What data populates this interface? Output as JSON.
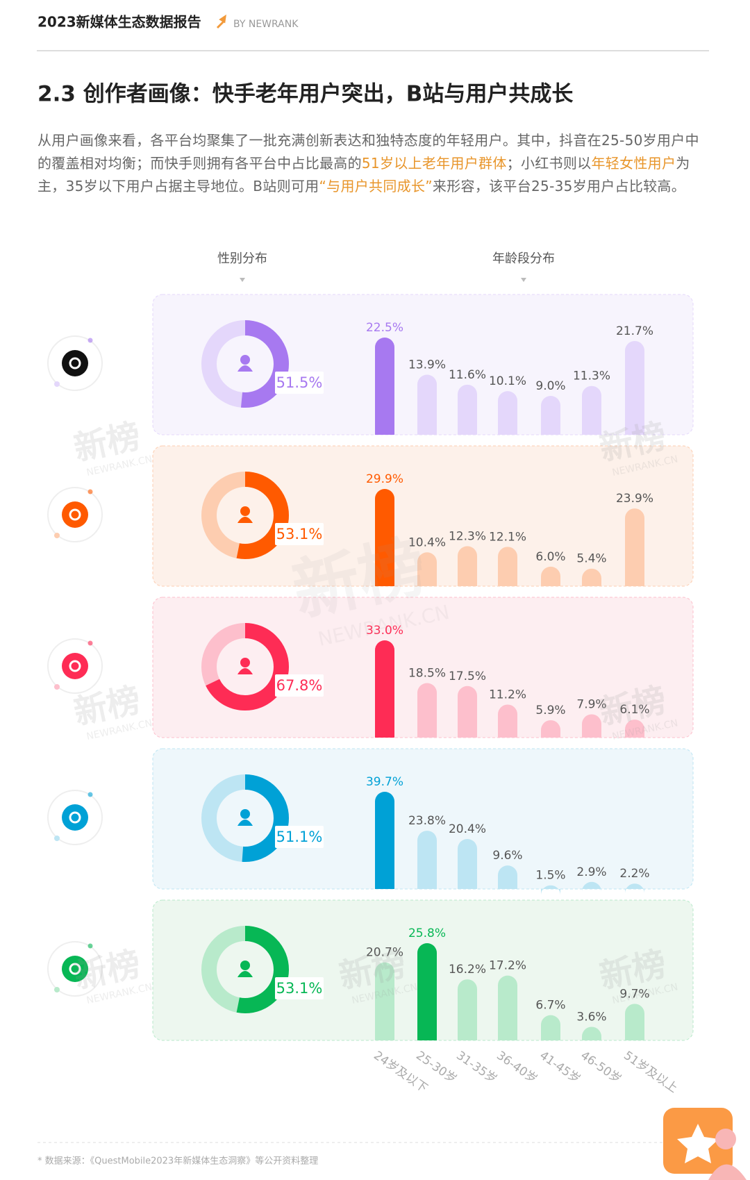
{
  "header": {
    "title": "2023新媒体生态数据报告",
    "by": "BY NEWRANK"
  },
  "section_title": "2.3 创作者画像：快手老年用户突出，B站与用户共成长",
  "paragraph": [
    {
      "text": "从用户画像来看，各平台均聚集了一批充满创新表达和独特态度的年轻用户。其中，抖音在25-50岁用户中的覆盖相对均衡；而快手则拥有各平台中占比最高的",
      "highlight": false
    },
    {
      "text": "51岁以上老年用户群体",
      "highlight": true
    },
    {
      "text": "；小红书则以",
      "highlight": false
    },
    {
      "text": "年轻女性用户",
      "highlight": true
    },
    {
      "text": "为主，35岁以下用户占据主导地位。B站则可用",
      "highlight": false
    },
    {
      "text": "“与用户共同成长”",
      "highlight": true
    },
    {
      "text": "来形容，该平台25-35岁用户占比较高。",
      "highlight": false
    }
  ],
  "columns": {
    "gender": "性别分布",
    "age": "年龄段分布"
  },
  "age_groups": [
    "24岁及以下",
    "25-30岁",
    "31-35岁",
    "36-40岁",
    "41-45岁",
    "46-50岁",
    "51岁及以上"
  ],
  "platforms": [
    {
      "color": "#a779f0",
      "light": "#e4d7fb",
      "panel": "#f7f4fd",
      "female": 51.5,
      "female_label": "51.5%",
      "ages": [
        22.5,
        13.9,
        11.6,
        10.1,
        9.0,
        11.3,
        21.7
      ],
      "age_labels": [
        "22.5%",
        "13.9%",
        "11.6%",
        "10.1%",
        "9.0%",
        "11.3%",
        "21.7%"
      ]
    },
    {
      "color": "#ff5a00",
      "light": "#fdcdb0",
      "panel": "#fdf1ea",
      "female": 53.1,
      "female_label": "53.1%",
      "ages": [
        29.9,
        10.4,
        12.3,
        12.1,
        6.0,
        5.4,
        23.9
      ],
      "age_labels": [
        "29.9%",
        "10.4%",
        "12.3%",
        "12.1%",
        "6.0%",
        "5.4%",
        "23.9%"
      ]
    },
    {
      "color": "#fe2c55",
      "light": "#fdbfcc",
      "panel": "#fdeef1",
      "female": 67.8,
      "female_label": "67.8%",
      "ages": [
        33.0,
        18.5,
        17.5,
        11.2,
        5.9,
        7.9,
        6.1
      ],
      "age_labels": [
        "33.0%",
        "18.5%",
        "17.5%",
        "11.2%",
        "5.9%",
        "7.9%",
        "6.1%"
      ]
    },
    {
      "color": "#00a1d6",
      "light": "#bde5f3",
      "panel": "#eef7fb",
      "female": 51.1,
      "female_label": "51.1%",
      "ages": [
        39.7,
        23.8,
        20.4,
        9.6,
        1.5,
        2.9,
        2.2
      ],
      "age_labels": [
        "39.7%",
        "23.8%",
        "20.4%",
        "9.6%",
        "1.5%",
        "2.9%",
        "2.2%"
      ]
    },
    {
      "color": "#07b755",
      "light": "#b8eacb",
      "panel": "#edf7ef",
      "female": 53.1,
      "female_label": "53.1%",
      "ages": [
        20.7,
        25.8,
        16.2,
        17.2,
        6.7,
        3.6,
        9.7
      ],
      "age_labels": [
        "20.7%",
        "25.8%",
        "16.2%",
        "17.2%",
        "6.7%",
        "3.6%",
        "9.7%"
      ]
    }
  ],
  "watermark": {
    "cn": "新榜",
    "en": "NEWRANK.CN"
  },
  "footer": "*  数据来源：《QuestMobile2023年新媒体生态洞察》等公开资料整理"
}
